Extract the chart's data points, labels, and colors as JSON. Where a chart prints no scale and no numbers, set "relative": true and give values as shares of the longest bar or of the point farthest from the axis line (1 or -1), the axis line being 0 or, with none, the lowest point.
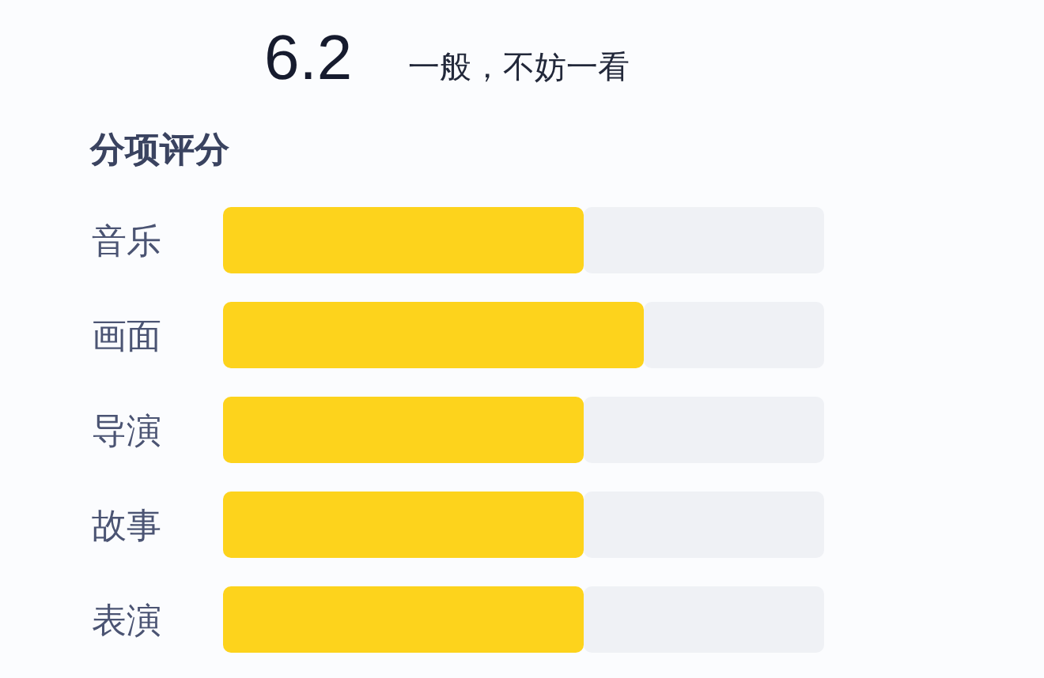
{
  "chart_data": {
    "type": "bar",
    "orientation": "horizontal",
    "stacked": true,
    "relative": true,
    "title": "分项评分",
    "annotations": [
      "6.2",
      "一般，不妨一看"
    ],
    "categories": [
      "音乐",
      "画面",
      "导演",
      "故事",
      "表演"
    ],
    "series": [
      {
        "color": "#fdd31c",
        "values": [
          0.6,
          0.7,
          0.6,
          0.6,
          0.6
        ]
      },
      {
        "color": "#eff1f5",
        "values": [
          0.4,
          0.3,
          0.4,
          0.4,
          0.4
        ]
      }
    ]
  }
}
